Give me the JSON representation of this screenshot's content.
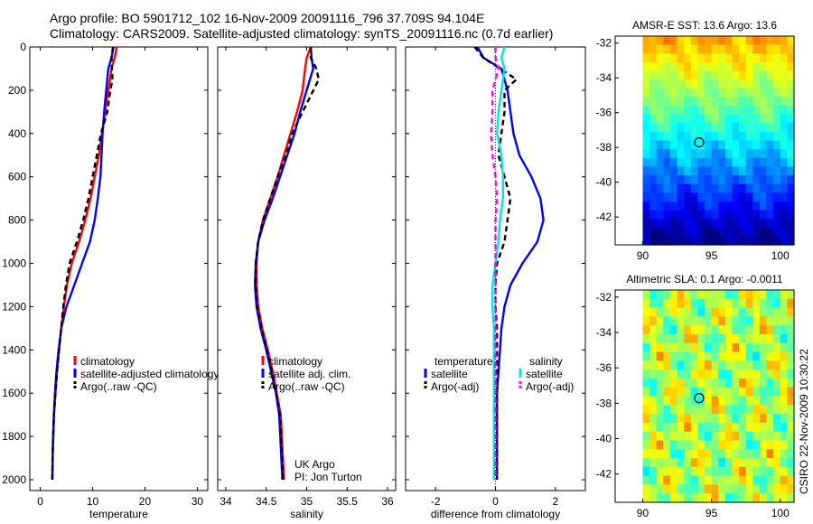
{
  "title": {
    "line1": "Argo profile: BO 5901712_102 16-Nov-2009 20091116_796 37.709S 94.104E",
    "line2": "Climatology: CARS2009. Satellite-adjusted climatology: synTS_20091116.nc (0.7d earlier)"
  },
  "footer_stamp": "CSIRO 22-Nov-2009 10:30:22",
  "attribution": {
    "line1": "UK Argo",
    "line2": "PI: Jon Turton"
  },
  "colors": {
    "climatology": "#ff0000",
    "satellite": "#0000ff",
    "argo": "#000000",
    "sat_salinity": "#00e5e5",
    "argo_salinity": "#ff00ff"
  },
  "chart_data": [
    {
      "type": "line",
      "xlabel": "temperature",
      "ylabel": "",
      "xlim": [
        -2,
        32
      ],
      "ylim": [
        2050,
        0
      ],
      "xticks": [
        0,
        10,
        20,
        30
      ],
      "yticks": [
        0,
        200,
        400,
        600,
        800,
        1000,
        1200,
        1400,
        1600,
        1800,
        2000
      ],
      "legend": [
        "climatology",
        "satellite-adjusted climatology",
        "Argo(..raw -QC)"
      ],
      "legend_position": "lower-right",
      "series": [
        {
          "name": "climatology",
          "color": "#ff0000",
          "style": "solid",
          "x": [
            14.6,
            14.2,
            13.6,
            13.0,
            12.4,
            11.8,
            11.2,
            10.4,
            9.6,
            8.6,
            7.4,
            6.0,
            5.1,
            4.5,
            4.0,
            3.6,
            3.2,
            2.9,
            2.6,
            2.4,
            2.3
          ],
          "y": [
            0,
            50,
            100,
            200,
            300,
            400,
            500,
            600,
            700,
            800,
            900,
            1000,
            1100,
            1200,
            1300,
            1400,
            1500,
            1600,
            1700,
            1850,
            2000
          ]
        },
        {
          "name": "satellite-adjusted climatology",
          "color": "#0000ff",
          "style": "solid",
          "x": [
            14.0,
            13.6,
            13.0,
            12.6,
            12.2,
            11.9,
            11.7,
            11.5,
            11.0,
            10.4,
            9.5,
            8.0,
            6.5,
            5.0,
            4.0,
            3.5,
            3.1,
            2.8,
            2.6,
            2.4,
            2.3
          ],
          "y": [
            0,
            50,
            100,
            200,
            300,
            400,
            500,
            600,
            700,
            800,
            900,
            1000,
            1100,
            1200,
            1300,
            1400,
            1500,
            1600,
            1700,
            1850,
            2000
          ]
        },
        {
          "name": "Argo(..raw -QC)",
          "color": "#000000",
          "style": "dashed",
          "x": [
            13.9,
            13.6,
            13.8,
            13.4,
            12.8,
            11.6,
            10.8,
            10.0,
            9.2,
            8.2,
            7.0,
            5.6,
            4.9,
            4.4,
            4.0,
            3.6,
            3.2,
            2.9,
            2.6,
            2.4,
            2.3
          ],
          "y": [
            0,
            50,
            150,
            200,
            300,
            400,
            500,
            600,
            700,
            800,
            900,
            1000,
            1100,
            1200,
            1300,
            1400,
            1500,
            1600,
            1700,
            1850,
            2000
          ]
        }
      ]
    },
    {
      "type": "line",
      "xlabel": "salinity",
      "ylabel": "",
      "xlim": [
        33.9,
        36.1
      ],
      "ylim": [
        2050,
        0
      ],
      "xticks": [
        34,
        34.5,
        35,
        35.5,
        36
      ],
      "xtick_labels": [
        "34",
        "34.5",
        "35",
        "35.5",
        "36"
      ],
      "yticks": [
        0,
        200,
        400,
        600,
        800,
        1000,
        1200,
        1400,
        1600,
        1800,
        2000
      ],
      "legend": [
        "climatology",
        "satellite adj. clim.",
        "Argo(..raw -QC)"
      ],
      "legend_position": "lower-right",
      "series": [
        {
          "name": "climatology",
          "color": "#ff0000",
          "style": "solid",
          "x": [
            35.05,
            35.0,
            34.98,
            34.95,
            34.88,
            34.8,
            34.72,
            34.64,
            34.55,
            34.46,
            34.4,
            34.38,
            34.38,
            34.4,
            34.45,
            34.52,
            34.58,
            34.63,
            34.68,
            34.72
          ],
          "y": [
            0,
            50,
            100,
            200,
            300,
            400,
            500,
            600,
            700,
            800,
            900,
            1000,
            1100,
            1200,
            1300,
            1400,
            1500,
            1600,
            1700,
            2000
          ]
        },
        {
          "name": "satellite adj. clim.",
          "color": "#0000ff",
          "style": "solid",
          "x": [
            35.05,
            35.06,
            35.08,
            35.0,
            34.92,
            34.85,
            34.76,
            34.67,
            34.58,
            34.48,
            34.4,
            34.37,
            34.36,
            34.38,
            34.43,
            34.5,
            34.56,
            34.62,
            34.66,
            34.7
          ],
          "y": [
            0,
            50,
            100,
            200,
            300,
            400,
            500,
            600,
            700,
            800,
            900,
            1000,
            1100,
            1200,
            1300,
            1400,
            1500,
            1600,
            1700,
            2000
          ]
        },
        {
          "name": "Argo(..raw -QC)",
          "color": "#000000",
          "style": "dashed",
          "x": [
            35.05,
            35.05,
            35.12,
            35.15,
            34.95,
            34.82,
            34.74,
            34.64,
            34.55,
            34.46,
            34.4,
            34.37,
            34.37,
            34.39,
            34.44,
            34.51,
            34.57,
            34.62,
            34.67,
            34.71
          ],
          "y": [
            0,
            50,
            100,
            150,
            300,
            400,
            500,
            600,
            700,
            800,
            900,
            1000,
            1100,
            1200,
            1300,
            1400,
            1500,
            1600,
            1700,
            2000
          ]
        }
      ]
    },
    {
      "type": "line",
      "xlabel": "difference from climatology",
      "ylabel": "",
      "xlim": [
        -3,
        3
      ],
      "ylim": [
        2050,
        0
      ],
      "xticks": [
        -2,
        0,
        2
      ],
      "yticks": [
        0,
        200,
        400,
        600,
        800,
        1000,
        1200,
        1400,
        1600,
        1800,
        2000
      ],
      "legend_groups": [
        {
          "heading": "temperature",
          "items": [
            "satellite",
            "Argo(-adj)"
          ]
        },
        {
          "heading": "salinity",
          "items": [
            "satellite",
            "Argo(-adj)"
          ]
        }
      ],
      "legend_position": "lower-middle",
      "series": [
        {
          "name": "temperature satellite",
          "color": "#0000ff",
          "style": "solid",
          "x": [
            -0.6,
            -0.4,
            0.2,
            0.4,
            0.5,
            0.6,
            0.8,
            1.2,
            1.5,
            1.6,
            1.4,
            0.9,
            0.5,
            0.3,
            0.2,
            0.15,
            0.1,
            0.05,
            0.05,
            0.05
          ],
          "y": [
            0,
            50,
            100,
            200,
            300,
            400,
            500,
            600,
            700,
            800,
            900,
            1000,
            1100,
            1200,
            1300,
            1400,
            1500,
            1600,
            1700,
            2000
          ]
        },
        {
          "name": "temperature Argo(-adj)",
          "color": "#000000",
          "style": "dashed",
          "x": [
            -0.7,
            -0.4,
            0.7,
            0.3,
            0.3,
            0.2,
            0.1,
            0.3,
            0.5,
            0.4,
            0.3,
            0.05,
            0.0,
            0.0,
            0.05,
            0.05,
            0.05,
            0.05,
            0.05,
            0.05
          ],
          "y": [
            0,
            50,
            150,
            200,
            300,
            400,
            500,
            600,
            700,
            800,
            900,
            1000,
            1100,
            1200,
            1300,
            1400,
            1500,
            1600,
            1700,
            2000
          ]
        },
        {
          "name": "salinity satellite",
          "color": "#00e5e5",
          "style": "solid",
          "x": [
            0.3,
            0.2,
            0.3,
            0.2,
            0.1,
            0.05,
            0.2,
            0.25,
            0.25,
            0.15,
            0.1,
            0.0,
            -0.1,
            -0.1,
            -0.05,
            -0.05,
            -0.05,
            -0.05,
            -0.05,
            -0.05
          ],
          "y": [
            0,
            50,
            100,
            200,
            300,
            400,
            500,
            600,
            700,
            800,
            900,
            1000,
            1100,
            1200,
            1300,
            1400,
            1500,
            1600,
            1700,
            2000
          ]
        },
        {
          "name": "salinity Argo(-adj)",
          "color": "#ff00ff",
          "style": "dashed",
          "x": [
            0.0,
            0.0,
            0.1,
            -0.1,
            -0.1,
            -0.15,
            -0.1,
            0.0,
            0.05,
            0.0,
            0.0,
            0.0,
            0.0,
            0.0,
            0.0,
            0.0,
            0.0,
            0.0,
            0.0,
            0.0
          ],
          "y": [
            0,
            50,
            100,
            200,
            300,
            400,
            500,
            600,
            700,
            800,
            900,
            1000,
            1100,
            1200,
            1300,
            1400,
            1500,
            1600,
            1700,
            2000
          ]
        }
      ]
    },
    {
      "type": "heatmap",
      "title": "AMSR-E SST: 13.6 Argo: 13.6",
      "xlim": [
        88,
        101
      ],
      "ylim": [
        -43.6,
        -31.6
      ],
      "xticks": [
        90,
        95,
        100
      ],
      "yticks": [
        -32,
        -34,
        -36,
        -38,
        -40,
        -42
      ],
      "data_xlim": [
        90,
        101
      ],
      "data_ylim": [
        -43.6,
        -31.6
      ],
      "marker": {
        "lon": 94.104,
        "lat": -37.709
      },
      "colormap": "jet"
    },
    {
      "type": "heatmap",
      "title": "Altimetric SLA: 0.1 Argo: -0.0011",
      "xlim": [
        88,
        101
      ],
      "ylim": [
        -43.6,
        -31.6
      ],
      "xticks": [
        90,
        95,
        100
      ],
      "yticks": [
        -32,
        -34,
        -36,
        -38,
        -40,
        -42
      ],
      "data_xlim": [
        90,
        101
      ],
      "data_ylim": [
        -43.6,
        -31.6
      ],
      "marker": {
        "lon": 94.104,
        "lat": -37.709
      },
      "colormap": "jet"
    }
  ]
}
